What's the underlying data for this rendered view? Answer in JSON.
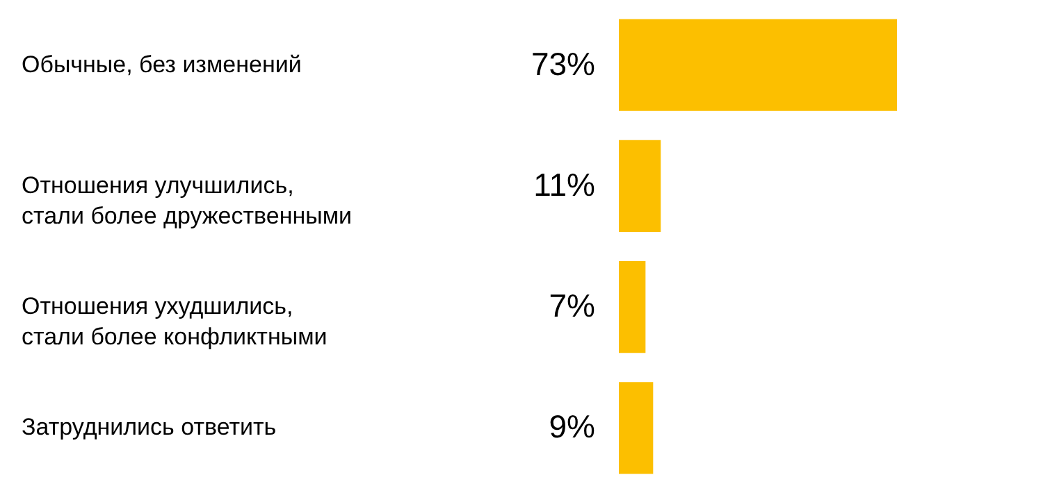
{
  "chart_data": {
    "type": "bar",
    "orientation": "horizontal",
    "categories": [
      "Обычные, без изменений",
      "Отношения улучшились, стали более дружественными",
      "Отношения ухудшились, стали более конфликтными",
      "Затруднились ответить"
    ],
    "values": [
      73,
      11,
      7,
      9
    ],
    "value_labels": [
      "73%",
      "11%",
      "7%",
      "9%"
    ],
    "color": "#fcbf00"
  }
}
